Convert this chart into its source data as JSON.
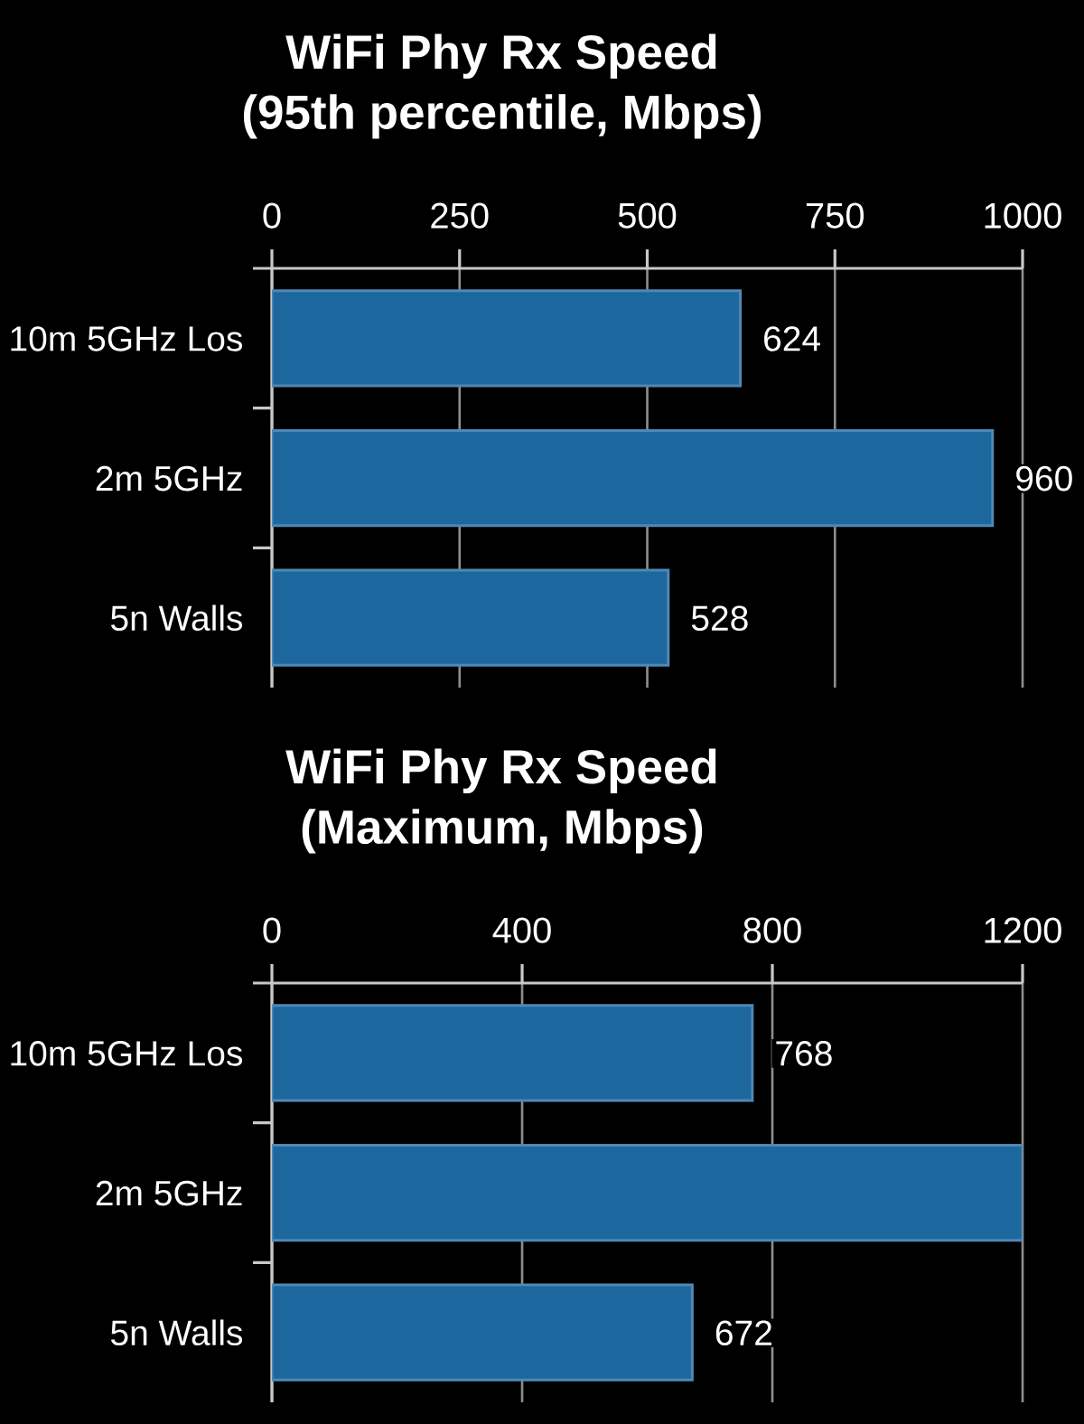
{
  "chart_data": [
    {
      "type": "bar",
      "orientation": "horizontal",
      "title": "WiFi Phy Rx Speed",
      "subtitle": "(95th percentile, Mbps)",
      "categories": [
        "10m 5GHz Los",
        "2m 5GHz",
        "5n Walls"
      ],
      "values": [
        624,
        960,
        528
      ],
      "value_labels": [
        "624",
        "960",
        "528"
      ],
      "color": "#1d679f",
      "xlim": [
        0,
        1000
      ],
      "xticks": [
        0,
        250,
        500,
        750,
        1000
      ],
      "grid": "x"
    },
    {
      "type": "bar",
      "orientation": "horizontal",
      "title": "WiFi Phy Rx Speed",
      "subtitle": "(Maximum, Mbps)",
      "categories": [
        "10m 5GHz Los",
        "2m 5GHz",
        "5n Walls"
      ],
      "values": [
        768,
        1200,
        672
      ],
      "value_labels": [
        "768",
        null,
        "672"
      ],
      "color": "#1d679f",
      "xlim": [
        0,
        1200
      ],
      "xticks": [
        0,
        400,
        800,
        1200
      ],
      "grid": "x"
    }
  ]
}
